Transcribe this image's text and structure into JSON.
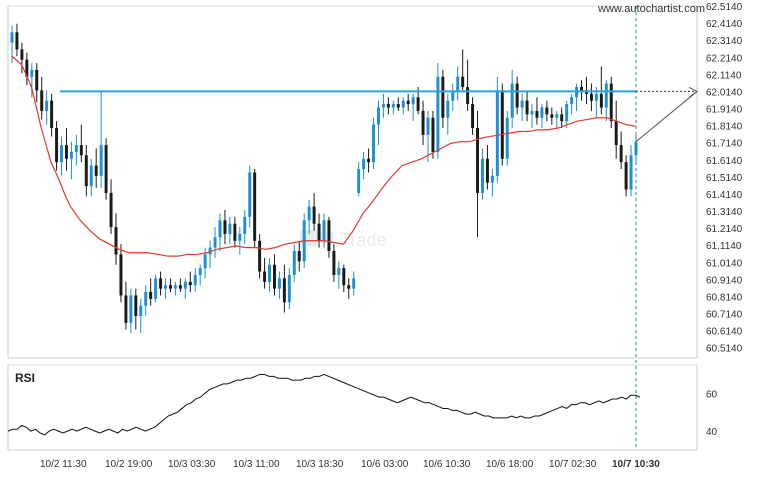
{
  "chart_data": [
    {
      "type": "candlestick",
      "watermark": "www.autochartist.com",
      "logo_text": "Trade",
      "y_ticks": [
        "62.5140",
        "62.4140",
        "62.3140",
        "62.2140",
        "62.1140",
        "62.0140",
        "61.9140",
        "61.8140",
        "61.7140",
        "61.6140",
        "61.5140",
        "61.4140",
        "61.3140",
        "61.2140",
        "61.1140",
        "61.0140",
        "60.9140",
        "60.8140",
        "60.7140",
        "60.6140",
        "60.5140"
      ],
      "x_ticks": [
        "10/2 11:30",
        "10/2 19:00",
        "10/3 03:30",
        "10/3 11:00",
        "10/3 18:30",
        "10/6 03:00",
        "10/6 10:30",
        "10/6 18:00",
        "10/7 02:30",
        "10/7 10:30"
      ],
      "ylim": [
        60.454,
        62.514
      ],
      "levels": [
        {
          "value": 62.014,
          "color": "#2aa4e0",
          "extends_as": "dotted"
        }
      ],
      "forecast_target": 62.014,
      "moving_average_color": "#e03a2f",
      "colors": {
        "bull": "#1e90d6",
        "bear": "#1a1a1a"
      },
      "candles": [
        [
          62.3,
          62.4,
          62.18,
          62.36
        ],
        [
          62.36,
          62.41,
          62.22,
          62.26
        ],
        [
          62.26,
          62.3,
          62.12,
          62.2
        ],
        [
          62.2,
          62.24,
          62.05,
          62.1
        ],
        [
          62.1,
          62.18,
          61.98,
          62.14
        ],
        [
          62.14,
          62.18,
          61.95,
          62.02
        ],
        [
          62.02,
          62.1,
          61.85,
          61.9
        ],
        [
          61.9,
          62.02,
          61.82,
          61.96
        ],
        [
          61.96,
          62.0,
          61.75,
          61.8
        ],
        [
          61.8,
          61.84,
          61.55,
          61.6
        ],
        [
          61.6,
          61.75,
          61.52,
          61.7
        ],
        [
          61.7,
          61.8,
          61.55,
          61.62
        ],
        [
          61.62,
          61.72,
          61.5,
          61.66
        ],
        [
          61.66,
          61.76,
          61.58,
          61.7
        ],
        [
          61.7,
          61.82,
          61.6,
          61.64
        ],
        [
          61.64,
          61.7,
          61.4,
          61.46
        ],
        [
          61.46,
          61.62,
          61.4,
          61.58
        ],
        [
          61.58,
          61.68,
          61.45,
          61.52
        ],
        [
          61.52,
          62.01,
          61.45,
          61.7
        ],
        [
          61.7,
          61.74,
          61.38,
          61.42
        ],
        [
          61.42,
          61.5,
          61.18,
          61.22
        ],
        [
          61.22,
          61.3,
          61.0,
          61.06
        ],
        [
          61.06,
          61.12,
          60.78,
          60.82
        ],
        [
          60.82,
          60.9,
          60.62,
          60.66
        ],
        [
          60.66,
          60.86,
          60.6,
          60.82
        ],
        [
          60.82,
          60.86,
          60.62,
          60.7
        ],
        [
          60.7,
          60.8,
          60.6,
          60.76
        ],
        [
          60.76,
          60.88,
          60.7,
          60.84
        ],
        [
          60.84,
          60.92,
          60.76,
          60.8
        ],
        [
          60.8,
          60.94,
          60.78,
          60.92
        ],
        [
          60.92,
          60.96,
          60.82,
          60.86
        ],
        [
          60.86,
          60.92,
          60.8,
          60.88
        ],
        [
          60.88,
          60.92,
          60.84,
          60.86
        ],
        [
          60.86,
          60.9,
          60.82,
          60.88
        ],
        [
          60.88,
          60.92,
          60.84,
          60.86
        ],
        [
          60.86,
          60.92,
          60.8,
          60.9
        ],
        [
          60.9,
          60.96,
          60.84,
          60.88
        ],
        [
          60.88,
          60.98,
          60.84,
          60.94
        ],
        [
          60.94,
          61.0,
          60.88,
          60.98
        ],
        [
          60.98,
          61.1,
          60.92,
          61.06
        ],
        [
          61.06,
          61.14,
          60.98,
          61.1
        ],
        [
          61.1,
          61.22,
          61.04,
          61.16
        ],
        [
          61.16,
          61.3,
          61.08,
          61.26
        ],
        [
          61.26,
          61.32,
          61.12,
          61.18
        ],
        [
          61.18,
          61.28,
          61.12,
          61.24
        ],
        [
          61.24,
          61.28,
          61.1,
          61.14
        ],
        [
          61.14,
          61.22,
          61.06,
          61.18
        ],
        [
          61.18,
          61.32,
          61.12,
          61.28
        ],
        [
          61.28,
          61.58,
          61.22,
          61.54
        ],
        [
          61.54,
          61.56,
          61.1,
          61.14
        ],
        [
          61.14,
          61.18,
          60.92,
          60.96
        ],
        [
          60.96,
          61.04,
          60.86,
          60.9
        ],
        [
          60.9,
          61.04,
          60.84,
          61.0
        ],
        [
          61.0,
          61.06,
          60.82,
          60.86
        ],
        [
          60.86,
          60.96,
          60.8,
          60.92
        ],
        [
          60.92,
          61.0,
          60.72,
          60.78
        ],
        [
          60.78,
          60.98,
          60.74,
          60.94
        ],
        [
          60.94,
          61.12,
          60.9,
          61.08
        ],
        [
          61.08,
          61.14,
          60.96,
          61.02
        ],
        [
          61.02,
          61.3,
          60.98,
          61.26
        ],
        [
          61.26,
          61.38,
          61.18,
          61.34
        ],
        [
          61.34,
          61.42,
          61.2,
          61.24
        ],
        [
          61.24,
          61.3,
          61.1,
          61.14
        ],
        [
          61.14,
          61.3,
          61.1,
          61.26
        ],
        [
          61.26,
          61.28,
          61.04,
          61.08
        ],
        [
          61.08,
          61.12,
          60.9,
          60.94
        ],
        [
          60.94,
          61.02,
          60.86,
          60.98
        ],
        [
          60.98,
          61.0,
          60.84,
          60.88
        ],
        [
          60.88,
          60.92,
          60.8,
          60.86
        ],
        [
          60.86,
          60.96,
          60.82,
          60.92
        ],
        [
          61.42,
          61.6,
          61.4,
          61.56
        ],
        [
          61.56,
          61.66,
          61.5,
          61.62
        ],
        [
          61.62,
          61.68,
          61.54,
          61.6
        ],
        [
          61.6,
          61.86,
          61.56,
          61.82
        ],
        [
          61.82,
          61.96,
          61.7,
          61.92
        ],
        [
          61.92,
          62.0,
          61.86,
          61.94
        ],
        [
          61.94,
          61.98,
          61.88,
          61.92
        ],
        [
          61.92,
          61.96,
          61.88,
          61.94
        ],
        [
          61.94,
          61.98,
          61.9,
          61.92
        ],
        [
          61.92,
          61.98,
          61.88,
          61.96
        ],
        [
          61.96,
          62.0,
          61.9,
          61.94
        ],
        [
          61.94,
          62.0,
          61.84,
          61.98
        ],
        [
          61.98,
          62.04,
          61.88,
          61.9
        ],
        [
          61.9,
          61.96,
          61.7,
          61.76
        ],
        [
          61.76,
          61.9,
          61.6,
          61.86
        ],
        [
          61.86,
          61.9,
          61.62,
          61.66
        ],
        [
          61.66,
          62.18,
          61.62,
          62.1
        ],
        [
          62.1,
          62.14,
          61.8,
          61.86
        ],
        [
          61.86,
          62.0,
          61.76,
          61.96
        ],
        [
          61.96,
          62.06,
          61.9,
          62.02
        ],
        [
          62.02,
          62.16,
          61.96,
          62.1
        ],
        [
          62.1,
          62.26,
          62.02,
          62.04
        ],
        [
          62.04,
          62.2,
          61.9,
          61.94
        ],
        [
          61.94,
          61.98,
          61.76,
          61.8
        ],
        [
          61.8,
          61.9,
          61.16,
          61.42
        ],
        [
          61.42,
          61.68,
          61.38,
          61.62
        ],
        [
          61.62,
          61.7,
          61.44,
          61.48
        ],
        [
          61.48,
          61.56,
          61.4,
          61.52
        ],
        [
          61.52,
          62.1,
          61.48,
          62.02
        ],
        [
          62.02,
          62.06,
          61.58,
          61.62
        ],
        [
          61.62,
          61.9,
          61.58,
          61.86
        ],
        [
          61.86,
          62.14,
          61.8,
          62.06
        ],
        [
          62.06,
          62.1,
          61.88,
          61.92
        ],
        [
          61.92,
          62.0,
          61.84,
          61.96
        ],
        [
          61.96,
          62.02,
          61.84,
          61.88
        ],
        [
          61.88,
          61.94,
          61.8,
          61.9
        ],
        [
          61.9,
          61.98,
          61.82,
          61.86
        ],
        [
          61.86,
          61.94,
          61.8,
          61.92
        ],
        [
          61.92,
          61.96,
          61.84,
          61.88
        ],
        [
          61.88,
          61.92,
          61.82,
          61.86
        ],
        [
          61.86,
          61.9,
          61.8,
          61.88
        ],
        [
          61.88,
          61.92,
          61.8,
          61.84
        ],
        [
          61.84,
          61.96,
          61.8,
          61.94
        ],
        [
          61.94,
          62.0,
          61.88,
          61.98
        ],
        [
          61.98,
          62.06,
          61.9,
          62.04
        ],
        [
          62.04,
          62.08,
          61.96,
          62.02
        ],
        [
          62.02,
          62.1,
          61.94,
          62.0
        ],
        [
          62.0,
          62.06,
          61.9,
          61.96
        ],
        [
          61.96,
          62.04,
          61.86,
          62.0
        ],
        [
          62.0,
          62.16,
          61.88,
          61.92
        ],
        [
          61.92,
          62.08,
          61.84,
          62.06
        ],
        [
          62.06,
          62.1,
          61.8,
          61.84
        ],
        [
          61.84,
          61.96,
          61.62,
          61.7
        ],
        [
          61.7,
          61.78,
          61.56,
          61.6
        ],
        [
          61.6,
          61.64,
          61.4,
          61.44
        ],
        [
          61.44,
          61.7,
          61.4,
          61.64
        ],
        [
          61.64,
          61.76,
          61.6,
          61.72
        ]
      ],
      "ma": [
        [
          0,
          62.22
        ],
        [
          10,
          62.17
        ],
        [
          20,
          62.04
        ],
        [
          30,
          61.8
        ],
        [
          40,
          61.6
        ],
        [
          48,
          61.5
        ],
        [
          55,
          61.4
        ],
        [
          60,
          61.34
        ],
        [
          70,
          61.26
        ],
        [
          80,
          61.2
        ],
        [
          90,
          61.15
        ],
        [
          100,
          61.12
        ],
        [
          110,
          61.09
        ],
        [
          120,
          61.07
        ],
        [
          130,
          61.07
        ],
        [
          140,
          61.07
        ],
        [
          150,
          61.06
        ],
        [
          160,
          61.05
        ],
        [
          170,
          61.05
        ],
        [
          180,
          61.06
        ],
        [
          190,
          61.06
        ],
        [
          200,
          61.07
        ],
        [
          210,
          61.09
        ],
        [
          220,
          61.1
        ],
        [
          230,
          61.11
        ],
        [
          240,
          61.1
        ],
        [
          250,
          61.1
        ],
        [
          260,
          61.09
        ],
        [
          270,
          61.1
        ],
        [
          280,
          61.12
        ],
        [
          290,
          61.13
        ],
        [
          300,
          61.14
        ],
        [
          310,
          61.14
        ],
        [
          320,
          61.14
        ],
        [
          330,
          61.13
        ],
        [
          340,
          61.12
        ],
        [
          350,
          61.2
        ],
        [
          360,
          61.3
        ],
        [
          370,
          61.37
        ],
        [
          380,
          61.45
        ],
        [
          390,
          61.52
        ],
        [
          400,
          61.58
        ],
        [
          410,
          61.6
        ],
        [
          420,
          61.62
        ],
        [
          430,
          61.65
        ],
        [
          440,
          61.68
        ],
        [
          450,
          61.71
        ],
        [
          460,
          61.72
        ],
        [
          470,
          61.72
        ],
        [
          480,
          61.74
        ],
        [
          490,
          61.75
        ],
        [
          500,
          61.76
        ],
        [
          510,
          61.77
        ],
        [
          520,
          61.78
        ],
        [
          530,
          61.78
        ],
        [
          540,
          61.79
        ],
        [
          550,
          61.79
        ],
        [
          560,
          61.8
        ],
        [
          570,
          61.82
        ],
        [
          580,
          61.84
        ],
        [
          590,
          61.85
        ],
        [
          600,
          61.86
        ],
        [
          610,
          61.86
        ],
        [
          620,
          61.84
        ],
        [
          630,
          61.82
        ],
        [
          640,
          61.81
        ]
      ]
    },
    {
      "type": "line",
      "title": "RSI",
      "y_ticks": [
        "60",
        "40"
      ],
      "ylim": [
        30,
        75
      ],
      "series": [
        {
          "values": [
            40,
            41,
            41,
            43,
            42,
            40,
            41,
            39,
            38,
            40,
            41,
            40,
            39,
            40,
            41,
            40,
            41,
            42,
            41,
            40,
            39,
            40,
            41,
            40,
            39,
            41,
            40,
            41,
            42,
            41,
            40,
            41,
            42,
            44,
            46,
            48,
            49,
            50,
            52,
            54,
            55,
            57,
            58,
            60,
            62,
            63,
            64,
            65,
            65,
            66,
            67,
            67,
            68,
            68,
            69,
            70,
            70,
            69,
            69,
            68,
            68,
            68,
            67,
            67,
            67,
            68,
            68,
            69,
            69,
            70,
            69,
            68,
            67,
            66,
            65,
            64,
            63,
            62,
            61,
            60,
            59,
            58,
            58,
            57,
            56,
            55,
            56,
            57,
            58,
            57,
            56,
            55,
            55,
            54,
            53,
            52,
            52,
            51,
            51,
            50,
            49,
            49,
            50,
            49,
            48,
            48,
            47,
            47,
            47,
            47,
            48,
            47,
            48,
            47,
            47,
            48,
            48,
            49,
            50,
            51,
            52,
            53,
            52,
            54,
            54,
            55,
            55,
            54,
            55,
            56,
            55,
            56,
            57,
            57,
            58,
            57,
            59,
            59,
            58
          ]
        }
      ]
    }
  ]
}
